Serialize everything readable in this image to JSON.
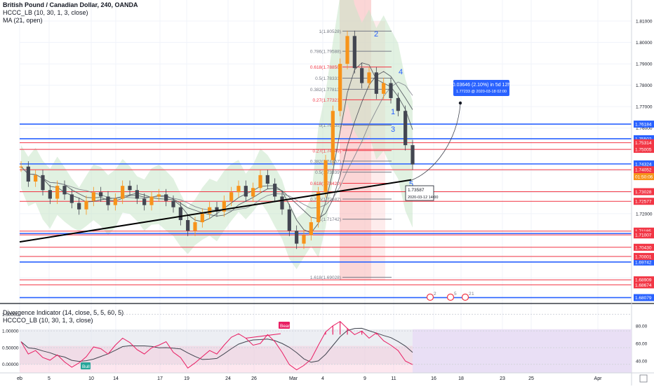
{
  "header": {
    "title": "British Pound / Canadian Dollar, 240, OANDA",
    "indicator_1": "HCCC_LB (10, 30, 1, 3, close)",
    "indicator_2": "MA (21, open)"
  },
  "sub_header": {
    "indicator_1": "Divergence Indicator (14, close, 5, 5, 60, 5)",
    "indicator_2": "HCCCO_LB (10, 30, 1, 3, close)"
  },
  "colors": {
    "up": "#f7931a",
    "down": "#434651",
    "blue_level": "#2962ff",
    "red_level": "#f23645",
    "trendline": "#000000",
    "fib_zone": "#f8b4b4",
    "rsi": "#e91e63",
    "panel_bg": "#e9dff5",
    "callout": "#2962ff"
  },
  "chart_data": [
    {
      "type": "line",
      "title": "British Pound / Canadian Dollar, 240, OANDA",
      "x_ticks": [
        "eb",
        "5",
        "10",
        "14",
        "17",
        "19",
        "24",
        "26",
        "Mar",
        "4",
        "9",
        "11",
        "16",
        "18",
        "23",
        "25",
        "Apr"
      ],
      "y_ticks": [
        1.81,
        1.8,
        1.79,
        1.78,
        1.77,
        1.76,
        1.75,
        1.74,
        1.73,
        1.72,
        1.71,
        1.7,
        1.69,
        1.68
      ],
      "ylim": [
        1.678,
        1.814
      ],
      "close_approx": [
        1.742,
        1.735,
        1.738,
        1.731,
        1.727,
        1.733,
        1.729,
        1.725,
        1.722,
        1.726,
        1.73,
        1.728,
        1.724,
        1.727,
        1.733,
        1.731,
        1.727,
        1.724,
        1.728,
        1.729,
        1.726,
        1.723,
        1.717,
        1.712,
        1.716,
        1.72,
        1.723,
        1.721,
        1.726,
        1.73,
        1.733,
        1.728,
        1.732,
        1.738,
        1.734,
        1.728,
        1.722,
        1.712,
        1.706,
        1.71,
        1.716,
        1.73,
        1.745,
        1.768,
        1.79,
        1.803,
        1.788,
        1.781,
        1.786,
        1.776,
        1.781,
        1.774,
        1.768,
        1.752,
        1.743
      ],
      "level_labels": {
        "blue": [
          "1.76184",
          "1.75502",
          "1.74324",
          "1.71074",
          "1.69742",
          "1.68079"
        ],
        "red": [
          "1.75314",
          "1.75005",
          "1.74052",
          "1.73028",
          "1.72577",
          "1.71185",
          "1.71007",
          "1.70430",
          "1.70001",
          "1.68909",
          "1.68674"
        ]
      },
      "current_price_label": "01:50:06",
      "fib_levels": [
        {
          "label": "1(1.80528)",
          "value": 1.80528
        },
        {
          "label": "0.786(1.79588)",
          "value": 1.79588
        },
        {
          "label": "0.618(1.78850)",
          "value": 1.7885
        },
        {
          "label": "0.5(1.78331)",
          "value": 1.78331
        },
        {
          "label": "0.382(1.77813)",
          "value": 1.77813
        },
        {
          "label": "0.27(1.77321)",
          "value": 1.77321
        },
        {
          "label": "0(1.76135)",
          "value": 1.76135
        },
        {
          "label": "0.27(1.74949)",
          "value": 1.74949
        },
        {
          "label": "0.382(1.74457)",
          "value": 1.74457
        },
        {
          "label": "0.5(1.73939)",
          "value": 1.73939
        },
        {
          "label": "0.618(1.73420)",
          "value": 1.7342
        },
        {
          "label": "0.786(1.72682)",
          "value": 1.72682
        },
        {
          "label": "1(1.71742)",
          "value": 1.71742
        },
        {
          "label": "1.618(1.69028)",
          "value": 1.69028
        }
      ],
      "wave_labels": [
        "1",
        "2",
        "3",
        "4",
        "5"
      ],
      "annotations": {
        "callout_line1": "0.03646 (2.10%) in 5d 12h",
        "callout_line2": "1.77233 @ 2020-03-18  02:00",
        "point_line1": "1.73587",
        "point_line2": "2020-03-12 14:00",
        "event_1": "2",
        "event_2": "5",
        "event_3": "2",
        "event_4": "1"
      }
    },
    {
      "type": "line",
      "title": "Divergence Indicator (14, close, 5, 5, 60, 5)",
      "left_ticks": [
        "1.50000",
        "1.00000",
        "0.50000",
        "0.00000"
      ],
      "right_ticks": [
        "80.00",
        "60.00",
        "40.00"
      ],
      "ylim": [
        -0.3,
        1.7
      ],
      "rsi_approx": [
        62,
        48,
        52,
        44,
        41,
        47,
        39,
        33,
        38,
        45,
        56,
        54,
        48,
        58,
        66,
        61,
        53,
        48,
        55,
        58,
        62,
        50,
        44,
        32,
        38,
        45,
        52,
        48,
        58,
        67,
        71,
        66,
        58,
        60,
        70,
        62,
        50,
        36,
        30,
        35,
        42,
        58,
        73,
        80,
        85,
        77,
        70,
        74,
        66,
        72,
        63,
        58,
        52,
        40,
        36
      ],
      "labels": {
        "bear": "Bear",
        "bull": "Bull"
      }
    }
  ]
}
